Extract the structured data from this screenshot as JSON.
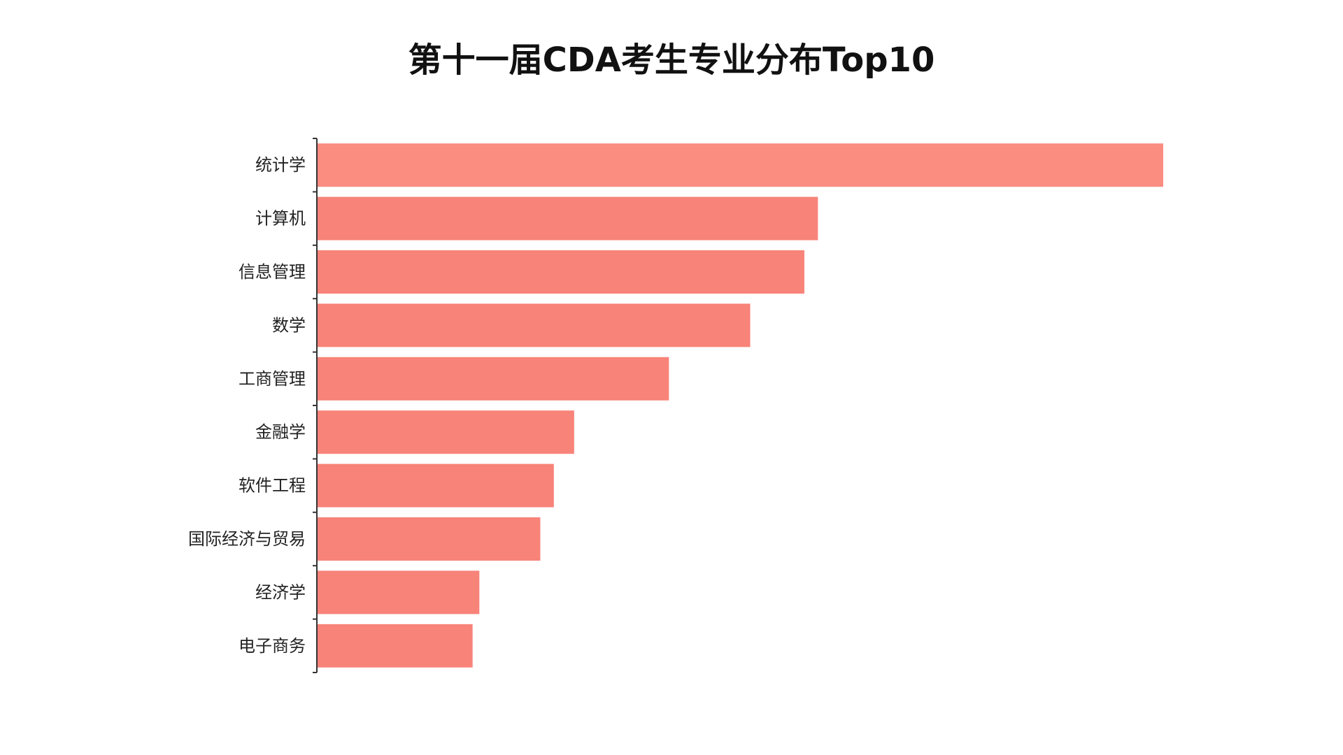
{
  "chart_data": {
    "type": "bar",
    "orientation": "horizontal",
    "title": "第十一届CDA考生专业分布Top10",
    "xlabel": "",
    "ylabel": "",
    "categories": [
      "统计学",
      "计算机",
      "信息管理",
      "数学",
      "工商管理",
      "金融学",
      "软件工程",
      "国际经济与贸易",
      "经济学",
      "电子商务"
    ],
    "values": [
      100,
      59.2,
      57.6,
      51.2,
      41.6,
      30.4,
      28,
      26.4,
      19.2,
      18.4
    ],
    "xlim": [
      0,
      100
    ],
    "grid": false,
    "legend": "none",
    "colors": {
      "bar": "#f88379",
      "bar_top": "#fa8c80",
      "axis": "#333333"
    }
  }
}
